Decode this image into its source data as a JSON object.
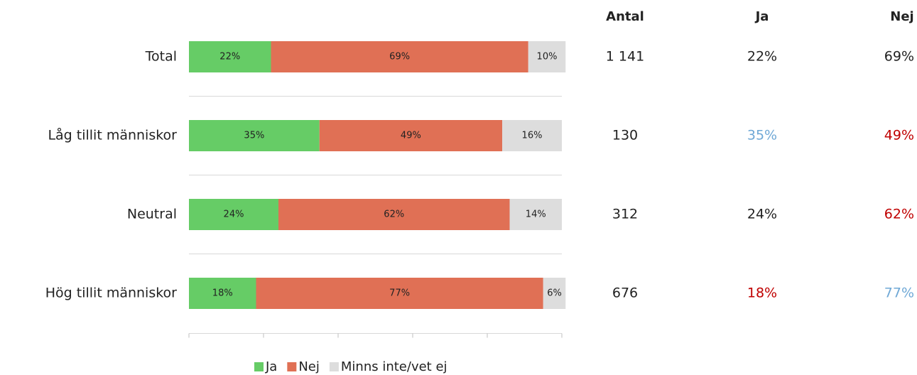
{
  "chart_data": {
    "type": "stacked_barh",
    "categories": [
      "Total",
      "Låg tillit människor",
      "Neutral",
      "Hög tillit människor"
    ],
    "series": [
      {
        "name": "Ja",
        "color": "#66cc66",
        "values": [
          22,
          35,
          24,
          18
        ],
        "value_labels": [
          "22%",
          "35%",
          "24%",
          "18%"
        ]
      },
      {
        "name": "Nej",
        "color": "#e07055",
        "values": [
          69,
          49,
          62,
          77
        ],
        "value_labels": [
          "69%",
          "49%",
          "62%",
          "77%"
        ]
      },
      {
        "name": "Minns inte/vet ej",
        "color": "#dddddd",
        "values": [
          10,
          16,
          14,
          6
        ],
        "value_labels": [
          "10%",
          "16%",
          "14%",
          "6%"
        ]
      }
    ],
    "xlim": [
      0,
      100
    ],
    "xticks": [
      0,
      20,
      40,
      60,
      80,
      100
    ],
    "legend": "bottom"
  },
  "table": {
    "columns": [
      "Antal",
      "Ja",
      "Nej"
    ],
    "rows": [
      [
        {
          "text": "1 141",
          "color": "#222222"
        },
        {
          "text": "22%",
          "color": "#222222"
        },
        {
          "text": "69%",
          "color": "#222222"
        }
      ],
      [
        {
          "text": "130",
          "color": "#222222"
        },
        {
          "text": "35%",
          "color": "#6fa8d6"
        },
        {
          "text": "49%",
          "color": "#c00000"
        }
      ],
      [
        {
          "text": "312",
          "color": "#222222"
        },
        {
          "text": "24%",
          "color": "#222222"
        },
        {
          "text": "62%",
          "color": "#c00000"
        }
      ],
      [
        {
          "text": "676",
          "color": "#222222"
        },
        {
          "text": "18%",
          "color": "#c00000"
        },
        {
          "text": "77%",
          "color": "#6fa8d6"
        }
      ]
    ]
  }
}
